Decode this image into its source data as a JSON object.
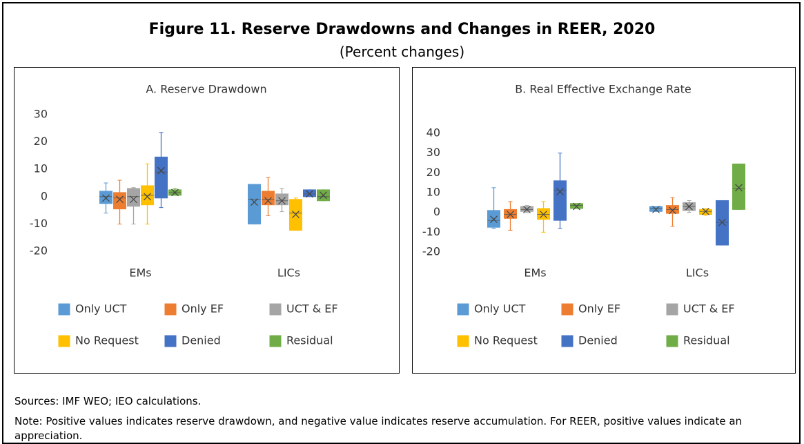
{
  "header": {
    "title": "Figure 11. Reserve Drawdowns and Changes in REER, 2020",
    "subtitle": "(Percent changes)"
  },
  "chart_data": [
    {
      "type": "box",
      "title": "A. Reserve Drawdown",
      "categories": [
        "EMs",
        "LICs"
      ],
      "ylim": [
        -20,
        30
      ],
      "yticks": [
        -20,
        -10,
        0,
        10,
        20,
        30
      ],
      "series": [
        {
          "name": "Only UCT",
          "color": "#5b9bd5",
          "min": [
            -6,
            -10
          ],
          "q1": [
            -2.5,
            -10
          ],
          "median": [
            0,
            -1
          ],
          "q3": [
            2,
            4.5
          ],
          "max": [
            5,
            4.5
          ],
          "mean": [
            -0.5,
            -2
          ]
        },
        {
          "name": "Only EF",
          "color": "#ed7d31",
          "min": [
            -10,
            -7
          ],
          "q1": [
            -4.5,
            -3
          ],
          "median": [
            -0.5,
            -1
          ],
          "q3": [
            1.5,
            2
          ],
          "max": [
            6,
            7
          ],
          "mean": [
            -1,
            -1.5
          ]
        },
        {
          "name": "UCT & EF",
          "color": "#a5a5a5",
          "min": [
            -10,
            -5.5
          ],
          "q1": [
            -3.5,
            -3
          ],
          "median": [
            0,
            -1.5
          ],
          "q3": [
            3,
            1
          ],
          "max": [
            3.3,
            3
          ],
          "mean": [
            -1,
            -1.5
          ]
        },
        {
          "name": "No Request",
          "color": "#ffc000",
          "min": [
            -10,
            -12.3
          ],
          "q1": [
            -3,
            -12.3
          ],
          "median": [
            0.5,
            -6
          ],
          "q3": [
            4,
            -1
          ],
          "max": [
            12,
            -0.5
          ],
          "mean": [
            0,
            -6.5
          ]
        },
        {
          "name": "Denied",
          "color": "#4472c4",
          "min": [
            -4,
            0
          ],
          "q1": [
            -0.5,
            0
          ],
          "median": [
            9,
            1
          ],
          "q3": [
            14.5,
            2.5
          ],
          "max": [
            23.5,
            2.5
          ],
          "mean": [
            9.5,
            1
          ]
        },
        {
          "name": "Residual",
          "color": "#70ad47",
          "min": [
            0.5,
            -1.5
          ],
          "q1": [
            0.5,
            -1.5
          ],
          "median": [
            1.5,
            0
          ],
          "q3": [
            2.5,
            2.5
          ],
          "max": [
            3,
            2.5
          ],
          "mean": [
            1.5,
            0.5
          ]
        }
      ]
    },
    {
      "type": "box",
      "title": "B. Real Effective Exchange Rate",
      "categories": [
        "EMs",
        "LICs"
      ],
      "ylim": [
        -20,
        40
      ],
      "yticks": [
        -20,
        -10,
        0,
        10,
        20,
        30,
        40
      ],
      "series": [
        {
          "name": "Only UCT",
          "color": "#5b9bd5",
          "min": [
            -8,
            0.5
          ],
          "q1": [
            -7.5,
            0.5
          ],
          "median": [
            -4,
            2
          ],
          "q3": [
            1,
            3
          ],
          "max": [
            12.5,
            3
          ],
          "mean": [
            -3.5,
            1.5
          ]
        },
        {
          "name": "Only EF",
          "color": "#ed7d31",
          "min": [
            -9,
            -7
          ],
          "q1": [
            -3,
            -0.5
          ],
          "median": [
            -1,
            1.5
          ],
          "q3": [
            1.5,
            3.5
          ],
          "max": [
            5.5,
            7.5
          ],
          "mean": [
            -1,
            1
          ]
        },
        {
          "name": "UCT & EF",
          "color": "#a5a5a5",
          "min": [
            0,
            0
          ],
          "q1": [
            0.5,
            1
          ],
          "median": [
            1.5,
            3
          ],
          "q3": [
            3,
            5
          ],
          "max": [
            3.5,
            6
          ],
          "mean": [
            1.5,
            3
          ]
        },
        {
          "name": "No Request",
          "color": "#ffc000",
          "min": [
            -10,
            -1.5
          ],
          "q1": [
            -3.5,
            -1
          ],
          "median": [
            -1,
            0.5
          ],
          "q3": [
            2,
            1.5
          ],
          "max": [
            5.5,
            2
          ],
          "mean": [
            -1,
            0.5
          ]
        },
        {
          "name": "Denied",
          "color": "#4472c4",
          "min": [
            -8,
            -16.5
          ],
          "q1": [
            -4,
            -16.5
          ],
          "median": [
            11,
            -5
          ],
          "q3": [
            16,
            6
          ],
          "max": [
            30,
            6
          ],
          "mean": [
            10.5,
            -5
          ]
        },
        {
          "name": "Residual",
          "color": "#70ad47",
          "min": [
            2,
            1.5
          ],
          "q1": [
            2,
            1.5
          ],
          "median": [
            3.5,
            12
          ],
          "q3": [
            4.5,
            24.5
          ],
          "max": [
            4.5,
            24.5
          ],
          "mean": [
            3,
            12.5
          ]
        }
      ]
    }
  ],
  "footer": {
    "sources": "Sources: IMF WEO; IEO calculations.",
    "note": "Note: Positive values indicates reserve drawdown, and negative value indicates reserve accumulation. For REER, positive values indicate an appreciation."
  }
}
